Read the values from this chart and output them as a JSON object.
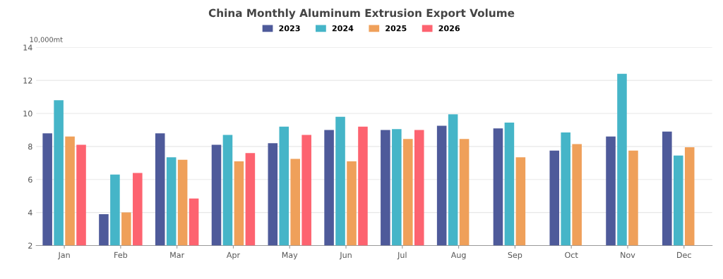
{
  "chart_data": {
    "type": "bar",
    "title": "China Monthly Aluminum Extrusion Export Volume",
    "ylabel": "10,000mt",
    "categories": [
      "Jan",
      "Feb",
      "Mar",
      "Apr",
      "May",
      "Jun",
      "Jul",
      "Aug",
      "Sep",
      "Oct",
      "Nov",
      "Dec"
    ],
    "series": [
      {
        "name": "2023",
        "color": "#4e5a9a",
        "values": [
          8.8,
          3.9,
          8.8,
          8.1,
          8.2,
          9.0,
          9.0,
          9.25,
          9.1,
          7.75,
          8.6,
          8.9
        ]
      },
      {
        "name": "2024",
        "color": "#45b5c8",
        "values": [
          10.8,
          6.3,
          7.35,
          8.7,
          9.2,
          9.8,
          9.05,
          9.95,
          9.45,
          8.85,
          12.4,
          7.45
        ]
      },
      {
        "name": "2025",
        "color": "#efa05a",
        "values": [
          8.6,
          4.0,
          7.2,
          7.1,
          7.25,
          7.1,
          8.45,
          8.45,
          7.35,
          8.15,
          7.75,
          7.95
        ]
      },
      {
        "name": "2026",
        "color": "#fd6370",
        "values": [
          8.1,
          6.4,
          4.85,
          7.6,
          8.7,
          9.2,
          9.0,
          null,
          null,
          null,
          null,
          null
        ]
      }
    ],
    "ylim": [
      2,
      14
    ],
    "yticks": [
      2,
      4,
      6,
      8,
      10,
      12,
      14
    ],
    "grid": "y",
    "legend": "top"
  }
}
